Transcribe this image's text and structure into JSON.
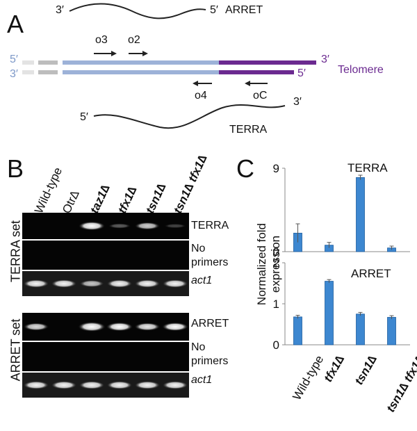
{
  "panel_a": {
    "letter": "A",
    "arret_label": "ARRET",
    "terra_label": "TERRA",
    "telomere_label": "Telomere",
    "strand_top_5": "5′",
    "strand_top_3": "3′",
    "strand_bottom_3": "3′",
    "strand_bottom_5": "5′",
    "arret_3": "3′",
    "arret_5": "5′",
    "terra_5": "5′",
    "terra_3": "3′",
    "primers": [
      "o3",
      "o2",
      "o4",
      "oC"
    ],
    "colors": {
      "light": "#9db2d8",
      "purple": "#6b2a90",
      "gray": "#bdbdbd"
    }
  },
  "panel_b": {
    "letter": "B",
    "lane_labels": [
      "Wild-type",
      "Otr∆",
      "taz1∆",
      "tfx1∆",
      "tsn1∆",
      "tsn1∆ tfx1∆"
    ],
    "terra_set_label": "TERRA set",
    "arret_set_label": "ARRET set",
    "row_labels_terra": [
      "TERRA",
      "No primers",
      "act1"
    ],
    "row_labels_arret": [
      "ARRET",
      "No primers",
      "act1"
    ],
    "terra_band_intensity": [
      0,
      0,
      0.85,
      0.15,
      0.6,
      0.05
    ],
    "arret_band_intensity": [
      0.65,
      0,
      1.0,
      0.85,
      0.7,
      0.8
    ],
    "act1_band_intensity_terra": [
      0.75,
      0.75,
      0.55,
      0.75,
      0.75,
      0.75
    ],
    "act1_band_intensity_arret": [
      0.75,
      0.75,
      0.75,
      0.75,
      0.75,
      0.75
    ]
  },
  "chart_data": [
    {
      "type": "bar",
      "title": "TERRA",
      "ylabel": "Normalized fold expression",
      "categories": [
        "Wild-type",
        "tfx1∆",
        "tsn1∆",
        "tsn1∆ tfx1∆"
      ],
      "values": [
        2.0,
        0.7,
        8.0,
        0.4
      ],
      "errors": [
        1.0,
        0.3,
        0.25,
        0.2
      ],
      "ylim": [
        0,
        9
      ],
      "yticks": [
        "0",
        "9"
      ],
      "color": "#3d87d0"
    },
    {
      "type": "bar",
      "title": "ARRET",
      "ylabel": "Normalized fold expression",
      "categories": [
        "Wild-type",
        "tfx1∆",
        "tsn1∆",
        "tsn1∆ tfx1∆"
      ],
      "values": [
        0.68,
        1.55,
        0.75,
        0.67
      ],
      "errors": [
        0.04,
        0.04,
        0.04,
        0.04
      ],
      "ylim": [
        0,
        2
      ],
      "yticks": [
        "0",
        "1",
        "2"
      ],
      "color": "#3d87d0"
    }
  ],
  "panel_c": {
    "letter": "C"
  }
}
